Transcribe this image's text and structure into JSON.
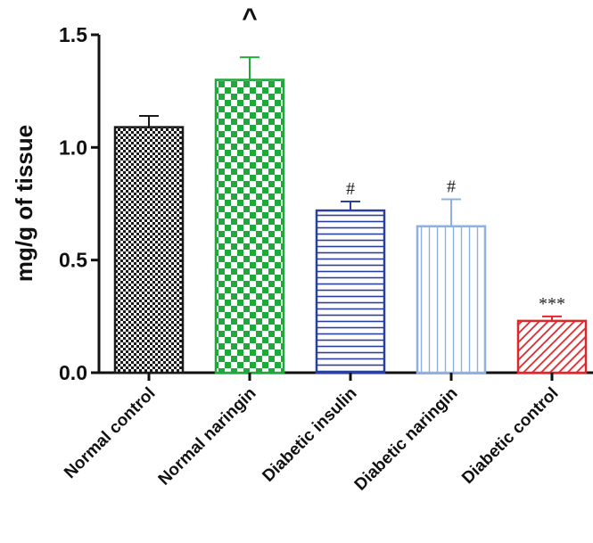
{
  "chart_data": {
    "type": "bar",
    "ylabel": "mg/g of tissue",
    "xlabel": "",
    "title": "",
    "ylim": [
      0,
      1.5
    ],
    "yticks": [
      0.0,
      0.5,
      1.0,
      1.5
    ],
    "ytick_labels": [
      "0.0",
      "0.5",
      "1.0",
      "1.5"
    ],
    "categories": [
      "Normal control",
      "Normal naringin",
      "Diabetic insulin",
      "Diabetic naringin",
      "Diabetic control"
    ],
    "values": [
      1.09,
      1.3,
      0.72,
      0.65,
      0.23
    ],
    "errors": [
      0.05,
      0.1,
      0.04,
      0.12,
      0.02
    ],
    "annotations": [
      "",
      "^",
      "#",
      "#",
      "***"
    ],
    "patterns": [
      "checker-fine",
      "checker-large",
      "horizontal-lines",
      "vertical-lines",
      "diagonal-lines"
    ],
    "colors": [
      "#1a1a1a",
      "#1fa83c",
      "#2b3f9e",
      "#8fb0e0",
      "#e0262b"
    ],
    "grid": false,
    "legend": "none"
  }
}
